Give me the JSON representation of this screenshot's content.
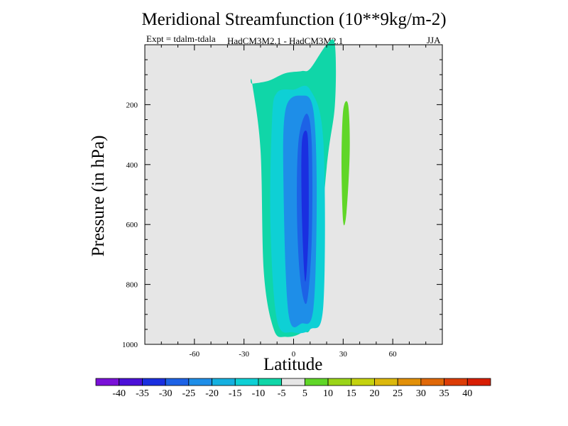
{
  "chart_data": {
    "type": "contour",
    "title": "Meridional Streamfunction (10**9kg/m-2)",
    "experiment_label": "Expt = tdalm-tdala",
    "model_label": "HadCM3M2.1 - HadCM3M2.1",
    "season": "JJA",
    "xlabel": "Latitude",
    "ylabel": "Pressure (in hPa)",
    "xlim": [
      -90,
      90
    ],
    "ylim": [
      1000,
      0
    ],
    "x_ticks": [
      -60,
      -30,
      0,
      30,
      60
    ],
    "x_tick_labels": [
      "-60",
      "-30",
      "0",
      "30",
      "60"
    ],
    "y_ticks": [
      200,
      400,
      600,
      800,
      1000
    ],
    "y_tick_labels": [
      "200",
      "400",
      "600",
      "800",
      "1000"
    ],
    "colorbar": {
      "levels": [
        "-40",
        "-35",
        "-30",
        "-25",
        "-20",
        "-15",
        "-10",
        "-5",
        "5",
        "10",
        "15",
        "20",
        "25",
        "30",
        "35",
        "40"
      ],
      "colors": [
        "#7a10d8",
        "#4b10d8",
        "#1a2fe0",
        "#1d62e6",
        "#1e8ee8",
        "#15b0e0",
        "#0ed0d5",
        "#10d6a8",
        "#e6e6e6",
        "#60d628",
        "#9ad418",
        "#c4d20e",
        "#dcb80c",
        "#e29008",
        "#e06808",
        "#dc3c06",
        "#d81e04"
      ]
    },
    "contours": [
      {
        "level_band": "-10 to -5",
        "color": "#10d6a8",
        "lat": [
          -25,
          -15,
          -5,
          5,
          10,
          20,
          25,
          25,
          20,
          12,
          5,
          -5,
          -12,
          -18,
          -20,
          -25
        ],
        "p": [
          130,
          120,
          95,
          88,
          80,
          0,
          0,
          200,
          410,
          900,
          960,
          975,
          950,
          760,
          350,
          130
        ]
      },
      {
        "level_band": "-15 to -10",
        "color": "#0ed0d5",
        "lat": [
          -10,
          0,
          10,
          18,
          18,
          10,
          0,
          -10,
          -14,
          -13
        ],
        "p": [
          160,
          150,
          150,
          320,
          870,
          950,
          960,
          920,
          600,
          250
        ]
      },
      {
        "level_band": "-20 to -15",
        "color": "#1e8ee8",
        "lat": [
          -5,
          5,
          12,
          14,
          12,
          5,
          -3,
          -6
        ],
        "p": [
          220,
          170,
          220,
          500,
          880,
          930,
          900,
          500
        ]
      },
      {
        "level_band": "-25 to -20",
        "color": "#1d62e6",
        "lat": [
          3,
          8,
          11,
          11,
          8,
          4,
          2
        ],
        "p": [
          320,
          230,
          330,
          650,
          860,
          780,
          550
        ]
      },
      {
        "level_band": "-30 to -25",
        "color": "#1a2fe0",
        "lat": [
          5,
          8,
          9,
          9,
          7,
          5
        ],
        "p": [
          330,
          290,
          380,
          630,
          790,
          560
        ]
      },
      {
        "level_band": "5 to 10",
        "color": "#60d628",
        "lat": [
          30,
          33,
          34,
          32,
          30,
          29
        ],
        "p": [
          220,
          200,
          350,
          560,
          590,
          400
        ]
      }
    ]
  }
}
